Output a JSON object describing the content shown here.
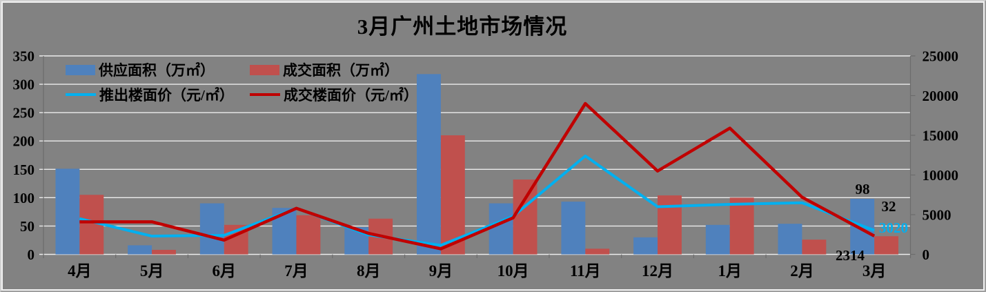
{
  "frame": {
    "background": "#828282"
  },
  "chart_data": {
    "type": "combo",
    "title": "3月广州土地市场情况",
    "categories": [
      "4月",
      "5月",
      "6月",
      "7月",
      "8月",
      "9月",
      "10月",
      "11月",
      "12月",
      "1月",
      "2月",
      "3月"
    ],
    "series": [
      {
        "name": "供应面积（万㎡）",
        "type": "bar",
        "axis": "left",
        "color": "#4F81BD",
        "values": [
          151,
          16,
          90,
          82,
          48,
          318,
          90,
          93,
          30,
          52,
          54,
          98
        ]
      },
      {
        "name": "成交面积（万㎡）",
        "type": "bar",
        "axis": "left",
        "color": "#C0504D",
        "values": [
          105,
          8,
          52,
          69,
          63,
          210,
          132,
          10,
          104,
          100,
          26,
          32
        ]
      },
      {
        "name": "推出楼面价（元/㎡）",
        "type": "line",
        "axis": "right",
        "color": "#00B0F0",
        "values": [
          4500,
          2300,
          2400,
          5800,
          2450,
          1150,
          4800,
          12400,
          6000,
          6300,
          6500,
          3020
        ]
      },
      {
        "name": "成交楼面价（元/㎡）",
        "type": "line",
        "axis": "right",
        "color": "#C00000",
        "values": [
          4100,
          4100,
          1800,
          5800,
          2650,
          700,
          4600,
          19000,
          10500,
          15900,
          7200,
          2314
        ]
      }
    ],
    "left_axis": {
      "min": 0,
      "max": 350,
      "step": 50,
      "ticks": [
        "0",
        "50",
        "100",
        "150",
        "200",
        "250",
        "300",
        "350"
      ]
    },
    "right_axis": {
      "min": 0,
      "max": 25000,
      "step": 5000,
      "ticks": [
        "0",
        "5000",
        "10000",
        "15000",
        "20000",
        "25000"
      ]
    },
    "grid": true,
    "legend_position": "top-left-overlay",
    "data_labels": [
      {
        "series": "供应面积（万㎡）",
        "category": "3月",
        "text": "98",
        "color": "#000000"
      },
      {
        "series": "成交面积（万㎡）",
        "category": "3月",
        "text": "32",
        "color": "#000000"
      },
      {
        "series": "推出楼面价（元/㎡）",
        "category": "3月",
        "text": "3020",
        "color": "#00B0F0"
      },
      {
        "series": "成交楼面价（元/㎡）",
        "category": "3月",
        "text": "2314",
        "color": "#000000"
      }
    ],
    "colors": {
      "background": "#828282",
      "gridline": "#ececec",
      "axis": "#6c6c6c",
      "text": "#000000"
    }
  }
}
